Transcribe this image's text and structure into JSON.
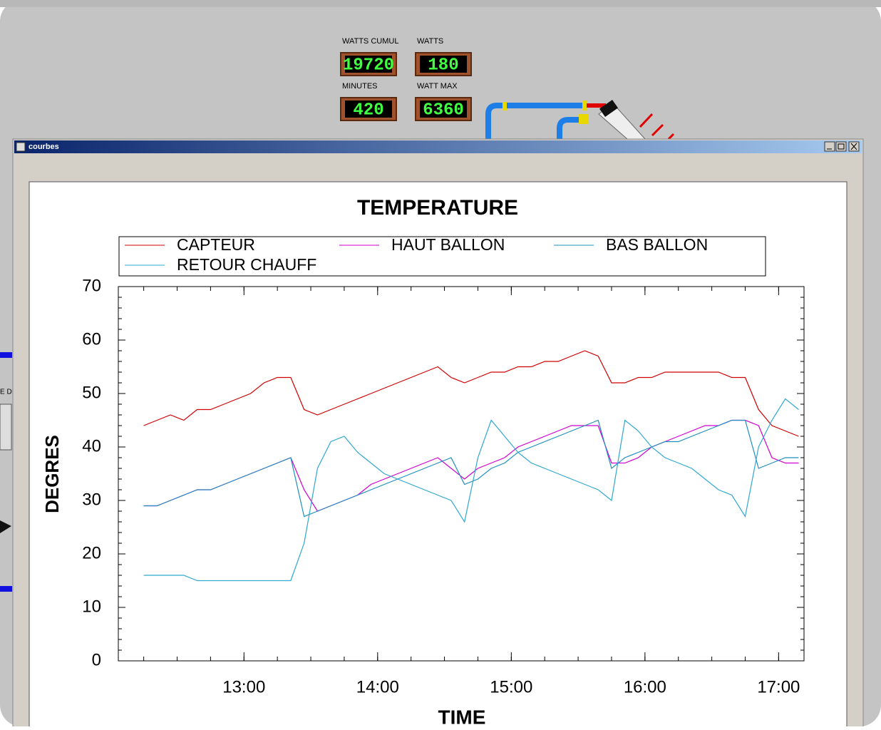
{
  "displays": [
    {
      "label": "WATTS CUMUL",
      "value": 19720
    },
    {
      "label": "WATTS",
      "value": 180
    },
    {
      "label": "MINUTES",
      "value": 420
    },
    {
      "label": "WATT MAX",
      "value": 6360
    }
  ],
  "fragment": "E DE",
  "window": {
    "title": "courbes"
  },
  "chart_data": {
    "type": "line",
    "title": "TEMPERATURE",
    "x_label": "TIME",
    "y_label": "DEGRES",
    "x": [
      12.25,
      12.35,
      12.45,
      12.55,
      12.65,
      12.75,
      12.85,
      12.95,
      13.05,
      13.15,
      13.25,
      13.35,
      13.45,
      13.55,
      13.65,
      13.75,
      13.85,
      13.95,
      14.05,
      14.15,
      14.25,
      14.35,
      14.45,
      14.55,
      14.65,
      14.75,
      14.85,
      14.95,
      15.05,
      15.15,
      15.25,
      15.35,
      15.45,
      15.55,
      15.65,
      15.75,
      15.85,
      15.95,
      16.05,
      16.15,
      16.25,
      16.35,
      16.45,
      16.55,
      16.65,
      16.75,
      16.85,
      16.95,
      17.05,
      17.15
    ],
    "series": [
      {
        "name": "CAPTEUR",
        "color": "#d00000",
        "values": [
          44,
          45,
          46,
          45,
          47,
          47,
          48,
          49,
          50,
          52,
          53,
          53,
          47,
          46,
          47,
          48,
          49,
          50,
          51,
          52,
          53,
          54,
          55,
          53,
          52,
          53,
          54,
          54,
          55,
          55,
          56,
          56,
          57,
          58,
          57,
          52,
          52,
          53,
          53,
          54,
          54,
          54,
          54,
          54,
          53,
          53,
          47,
          44,
          43,
          42
        ]
      },
      {
        "name": "HAUT BALLON",
        "color": "#d000d0",
        "values": [
          29,
          29,
          30,
          31,
          32,
          32,
          33,
          34,
          35,
          36,
          37,
          38,
          32,
          28,
          29,
          30,
          31,
          33,
          34,
          35,
          36,
          37,
          38,
          36,
          34,
          36,
          37,
          38,
          40,
          41,
          42,
          43,
          44,
          44,
          44,
          37,
          37,
          38,
          40,
          41,
          42,
          43,
          44,
          44,
          45,
          45,
          44,
          38,
          37,
          37
        ]
      },
      {
        "name": "BAS BALLON",
        "color": "#1f8fc0",
        "values": [
          29,
          29,
          30,
          31,
          32,
          32,
          33,
          34,
          35,
          36,
          37,
          38,
          27,
          28,
          29,
          30,
          31,
          32,
          33,
          34,
          35,
          36,
          37,
          38,
          33,
          34,
          36,
          37,
          39,
          40,
          41,
          42,
          43,
          44,
          45,
          36,
          38,
          39,
          40,
          41,
          41,
          42,
          43,
          44,
          45,
          45,
          36,
          37,
          38,
          38
        ]
      },
      {
        "name": "RETOUR CHAUFF",
        "color": "#30a8d0",
        "values": [
          16,
          16,
          16,
          16,
          15,
          15,
          15,
          15,
          15,
          15,
          15,
          15,
          22,
          36,
          41,
          42,
          39,
          37,
          35,
          34,
          33,
          32,
          31,
          30,
          26,
          38,
          45,
          42,
          39,
          37,
          36,
          35,
          34,
          33,
          32,
          30,
          45,
          43,
          40,
          38,
          37,
          36,
          34,
          32,
          31,
          27,
          40,
          45,
          49,
          47
        ]
      }
    ],
    "xlim": [
      12.06,
      17.19
    ],
    "xticks": [
      {
        "value": 13,
        "label": "13:00"
      },
      {
        "value": 14,
        "label": "14:00"
      },
      {
        "value": 15,
        "label": "15:00"
      },
      {
        "value": 16,
        "label": "16:00"
      },
      {
        "value": 17,
        "label": "17:00"
      }
    ],
    "ylim": [
      0,
      70
    ],
    "yticks": [
      0,
      10,
      20,
      30,
      40,
      50,
      60,
      70
    ],
    "grid": false
  }
}
